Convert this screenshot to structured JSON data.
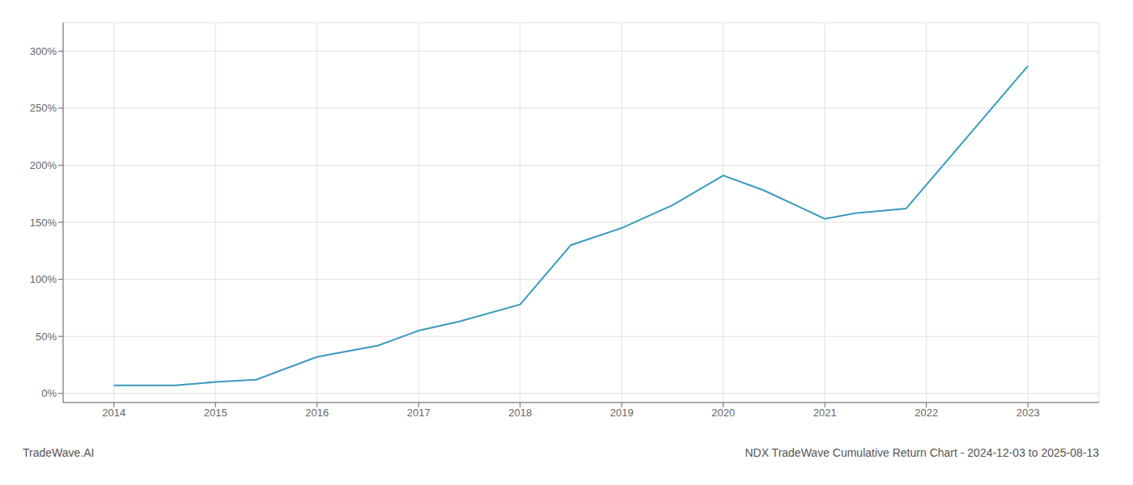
{
  "chart_data": {
    "type": "line",
    "title": "NDX TradeWave Cumulative Return Chart - 2024-12-03 to 2025-08-13",
    "annotations": [
      "TradeWave.AI"
    ],
    "x": [
      2014.0,
      2014.6,
      2015.0,
      2015.4,
      2016.0,
      2016.6,
      2017.0,
      2017.4,
      2018.0,
      2018.5,
      2019.0,
      2019.5,
      2020.0,
      2020.4,
      2021.0,
      2021.3,
      2021.8,
      2022.5,
      2023.0
    ],
    "values": [
      7,
      7,
      10,
      12,
      32,
      42,
      55,
      63,
      78,
      130,
      145,
      165,
      191,
      178,
      153,
      158,
      162,
      235,
      287
    ],
    "color": "#3a9abf",
    "xlim": [
      2013.5,
      2023.7
    ],
    "xticks": [
      2014,
      2015,
      2016,
      2017,
      2018,
      2019,
      2020,
      2021,
      2022,
      2023
    ],
    "ylim": [
      -8,
      325
    ],
    "yticks": [
      {
        "value": 0,
        "label": "0%"
      },
      {
        "value": 50,
        "label": "50%"
      },
      {
        "value": 100,
        "label": "100%"
      },
      {
        "value": 150,
        "label": "150%"
      },
      {
        "value": 200,
        "label": "200%"
      },
      {
        "value": 250,
        "label": "250%"
      },
      {
        "value": 300,
        "label": "300%"
      }
    ],
    "grid": true
  }
}
